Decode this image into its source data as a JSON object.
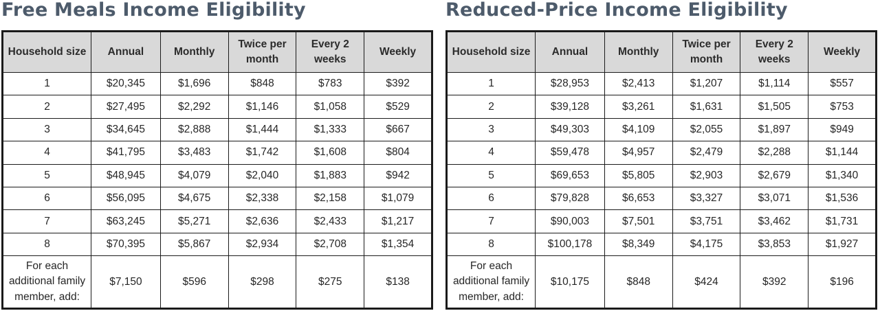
{
  "tables": [
    {
      "id": "free",
      "title": "Free Meals Income Eligibility",
      "headers": [
        "Household size",
        "Annual",
        "Monthly",
        "Twice per month",
        "Every 2 weeks",
        "Weekly"
      ],
      "rows": [
        [
          "1",
          "$20,345",
          "$1,696",
          "$848",
          "$783",
          "$392"
        ],
        [
          "2",
          "$27,495",
          "$2,292",
          "$1,146",
          "$1,058",
          "$529"
        ],
        [
          "3",
          "$34,645",
          "$2,888",
          "$1,444",
          "$1,333",
          "$667"
        ],
        [
          "4",
          "$41,795",
          "$3,483",
          "$1,742",
          "$1,608",
          "$804"
        ],
        [
          "5",
          "$48,945",
          "$4,079",
          "$2,040",
          "$1,883",
          "$942"
        ],
        [
          "6",
          "$56,095",
          "$4,675",
          "$2,338",
          "$2,158",
          "$1,079"
        ],
        [
          "7",
          "$63,245",
          "$5,271",
          "$2,636",
          "$2,433",
          "$1,217"
        ],
        [
          "8",
          "$70,395",
          "$5,867",
          "$2,934",
          "$2,708",
          "$1,354"
        ]
      ],
      "additional": [
        "For each additional family member, add:",
        "$7,150",
        "$596",
        "$298",
        "$275",
        "$138"
      ]
    },
    {
      "id": "reduced",
      "title": "Reduced-Price Income Eligibility",
      "headers": [
        "Household size",
        "Annual",
        "Monthly",
        "Twice per month",
        "Every 2 weeks",
        "Weekly"
      ],
      "rows": [
        [
          "1",
          "$28,953",
          "$2,413",
          "$1,207",
          "$1,114",
          "$557"
        ],
        [
          "2",
          "$39,128",
          "$3,261",
          "$1,631",
          "$1,505",
          "$753"
        ],
        [
          "3",
          "$49,303",
          "$4,109",
          "$2,055",
          "$1,897",
          "$949"
        ],
        [
          "4",
          "$59,478",
          "$4,957",
          "$2,479",
          "$2,288",
          "$1,144"
        ],
        [
          "5",
          "$69,653",
          "$5,805",
          "$2,903",
          "$2,679",
          "$1,340"
        ],
        [
          "6",
          "$79,828",
          "$6,653",
          "$3,327",
          "$3,071",
          "$1,536"
        ],
        [
          "7",
          "$90,003",
          "$7,501",
          "$3,751",
          "$3,462",
          "$1,731"
        ],
        [
          "8",
          "$100,178",
          "$8,349",
          "$4,175",
          "$3,853",
          "$1,927"
        ]
      ],
      "additional": [
        "For each additional family member, add:",
        "$10,175",
        "$848",
        "$424",
        "$392",
        "$196"
      ]
    }
  ],
  "colors": {
    "title": "#4d5b6b",
    "header_bg": "#d9d9d9",
    "border": "#1a1a1a"
  }
}
